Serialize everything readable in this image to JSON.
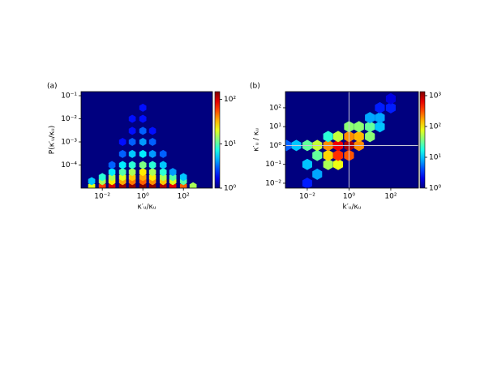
{
  "chart_data": [
    {
      "type": "hexbin",
      "panel_label": "(a)",
      "xlabel": "κ′ᵤ/κᵤ",
      "ylabel": "P(κ′ᵤ/κᵤ)",
      "xscale": "log",
      "yscale": "log",
      "colormap": "jet",
      "background": "#00007f",
      "xlim": [
        0.0009,
        2700
      ],
      "ylim": [
        1e-05,
        0.15
      ],
      "xticks": [
        {
          "value": 0.01,
          "label": "10⁻²"
        },
        {
          "value": 1,
          "label": "10⁰"
        },
        {
          "value": 100,
          "label": "10²"
        }
      ],
      "yticks": [
        {
          "value": 0.1,
          "label": "10⁻¹"
        },
        {
          "value": 0.01,
          "label": "10⁻²"
        },
        {
          "value": 0.001,
          "label": "10⁻³"
        },
        {
          "value": 0.0001,
          "label": "10⁻⁴"
        }
      ],
      "clim": [
        1,
        150
      ],
      "cticks": [
        {
          "value": 1,
          "label": "10⁰"
        },
        {
          "value": 10,
          "label": "10¹"
        },
        {
          "value": 100,
          "label": "10²"
        }
      ],
      "x": [
        0.003,
        0.01,
        0.03,
        0.1,
        0.3,
        1,
        3,
        10,
        30,
        100,
        300,
        0.003,
        0.01,
        0.03,
        0.1,
        0.3,
        1,
        3,
        10,
        30,
        100,
        0.01,
        0.03,
        0.1,
        0.3,
        1,
        3,
        10,
        30,
        100,
        0.03,
        0.1,
        0.3,
        1,
        3,
        10,
        30,
        0.03,
        0.1,
        0.3,
        1,
        3,
        10,
        0.1,
        0.3,
        1,
        3,
        10,
        0.1,
        0.3,
        1,
        3,
        0.3,
        1,
        3,
        0.3,
        1,
        1,
        1
      ],
      "y": [
        1.2e-05,
        1.2e-05,
        1.2e-05,
        1.2e-05,
        1.2e-05,
        1.2e-05,
        1.2e-05,
        1.2e-05,
        1.2e-05,
        1.2e-05,
        1.2e-05,
        2e-05,
        2e-05,
        2e-05,
        2e-05,
        2e-05,
        2e-05,
        2e-05,
        2e-05,
        2e-05,
        2e-05,
        3e-05,
        3e-05,
        3e-05,
        3e-05,
        3e-05,
        3e-05,
        3e-05,
        3e-05,
        3e-05,
        5e-05,
        5e-05,
        5e-05,
        5e-05,
        5e-05,
        5e-05,
        5e-05,
        0.0001,
        0.0001,
        0.0001,
        0.0001,
        0.0001,
        0.0001,
        0.0003,
        0.0003,
        0.0003,
        0.0003,
        0.0003,
        0.001,
        0.001,
        0.001,
        0.001,
        0.003,
        0.003,
        0.003,
        0.01,
        0.01,
        0.03,
        0.1
      ],
      "counts": [
        20,
        60,
        100,
        130,
        140,
        150,
        140,
        120,
        90,
        50,
        15,
        5,
        15,
        25,
        35,
        45,
        50,
        40,
        30,
        20,
        10,
        8,
        15,
        20,
        30,
        35,
        25,
        15,
        10,
        5,
        6,
        10,
        15,
        25,
        15,
        8,
        4,
        3,
        6,
        8,
        12,
        8,
        5,
        3,
        5,
        6,
        4,
        3,
        2,
        3,
        4,
        3,
        2,
        3,
        2,
        2,
        2,
        2,
        1
      ]
    },
    {
      "type": "hexbin",
      "panel_label": "(b)",
      "xlabel": "k′ᵤ/κᵤ",
      "ylabel": "κ′ᵤ / κᵤ",
      "xscale": "log",
      "yscale": "log",
      "colormap": "jet",
      "background": "#00007f",
      "xlim": [
        0.0009,
        2100
      ],
      "ylim": [
        0.0055,
        720
      ],
      "xticks": [
        {
          "value": 0.01,
          "label": "10⁻²"
        },
        {
          "value": 1,
          "label": "10⁰"
        },
        {
          "value": 100,
          "label": "10²"
        }
      ],
      "yticks": [
        {
          "value": 100,
          "label": "10²"
        },
        {
          "value": 10,
          "label": "10¹"
        },
        {
          "value": 1,
          "label": "10⁰"
        },
        {
          "value": 0.1,
          "label": "10⁻¹"
        },
        {
          "value": 0.01,
          "label": "10⁻²"
        }
      ],
      "clim": [
        1,
        1350
      ],
      "cticks": [
        {
          "value": 1,
          "label": "10⁰"
        },
        {
          "value": 10,
          "label": "10¹"
        },
        {
          "value": 100,
          "label": "10²"
        },
        {
          "value": 1000,
          "label": "10³"
        }
      ],
      "vlines": [
        1
      ],
      "hlines": [
        1
      ],
      "x": [
        0.01,
        0.01,
        0.01,
        0.03,
        0.03,
        0.03,
        0.1,
        0.1,
        0.1,
        0.1,
        0.3,
        0.3,
        0.3,
        0.3,
        1,
        1,
        1,
        1,
        3,
        3,
        3,
        10,
        10,
        10,
        30,
        30,
        30,
        100,
        100,
        0.003,
        0.001,
        0.01
      ],
      "y": [
        0.01,
        0.1,
        1,
        0.03,
        0.3,
        1,
        0.1,
        0.3,
        1,
        3,
        0.1,
        0.3,
        1,
        3,
        0.3,
        1,
        3,
        10,
        1,
        3,
        10,
        3,
        10,
        30,
        10,
        30,
        100,
        100,
        300,
        1,
        1,
        0.003
      ],
      "counts": [
        3,
        10,
        30,
        8,
        30,
        60,
        50,
        120,
        200,
        20,
        80,
        400,
        600,
        60,
        300,
        1000,
        200,
        40,
        200,
        150,
        40,
        40,
        30,
        8,
        10,
        8,
        3,
        3,
        2,
        10,
        5,
        2
      ]
    }
  ]
}
